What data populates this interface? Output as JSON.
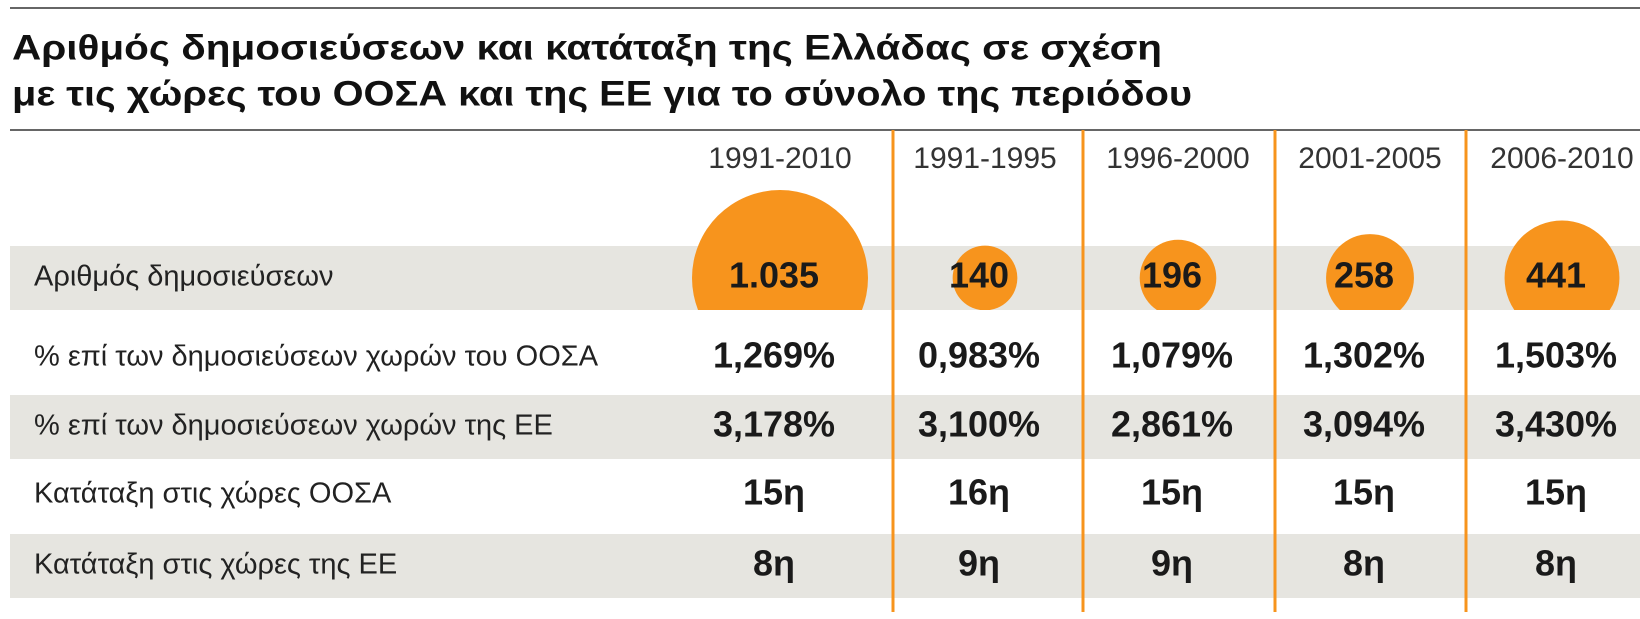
{
  "title": [
    "Αριθμός δημοσιεύσεων και κατάταξη της Ελλάδας σε σχέση",
    "με τις χώρες του ΟΟΣΑ και της ΕΕ για το σύνολο της περιόδου"
  ],
  "table": {
    "columns": [
      "1991-2010",
      "1991-1995",
      "1996-2000",
      "2001-2005",
      "2006-2010"
    ],
    "rows": [
      {
        "label": "Αριθμός δημοσιεύσεων",
        "cells": [
          {
            "value": 1035,
            "label": "1.035"
          },
          {
            "value": 140,
            "label": "140"
          },
          {
            "value": 196,
            "label": "196"
          },
          {
            "value": 258,
            "label": "258"
          },
          {
            "value": 441,
            "label": "441"
          }
        ]
      },
      {
        "label": "% επί των δημοσιεύσεων χωρών του ΟΟΣΑ",
        "cells": [
          "1,269%",
          "0,983%",
          "1,079%",
          "1,302%",
          "1,503%"
        ]
      },
      {
        "label": "% επί των δημοσιεύσεων χωρών της ΕΕ",
        "cells": [
          "3,178%",
          "3,100%",
          "2,861%",
          "3,094%",
          "3,430%"
        ]
      },
      {
        "label": "Κατάταξη στις χώρες ΟΟΣΑ",
        "cells": [
          "15η",
          "16η",
          "15η",
          "15η",
          "15η"
        ]
      },
      {
        "label": "Κατάταξη στις χώρες της ΕΕ",
        "cells": [
          "8η",
          "9η",
          "9η",
          "8η",
          "8η"
        ]
      }
    ]
  }
}
